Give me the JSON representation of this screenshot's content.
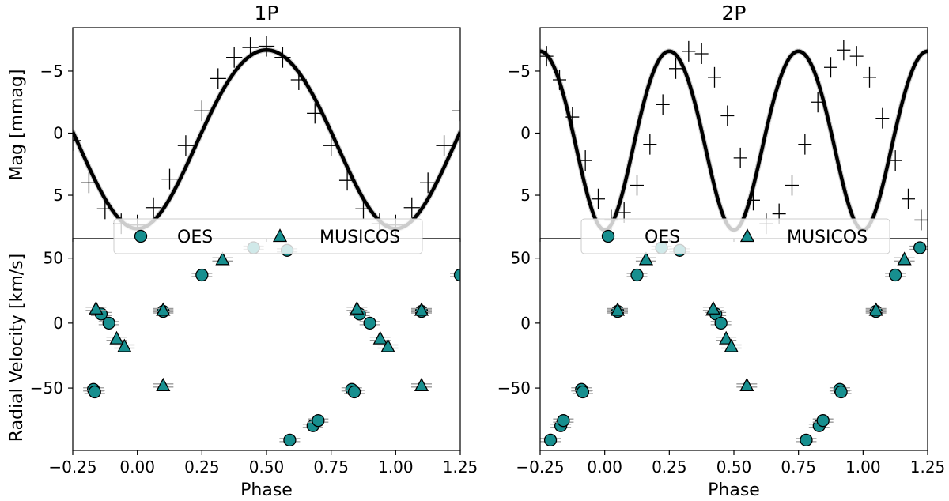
{
  "chart_data": [
    {
      "type": "scatter",
      "panel": "light curve",
      "title": "1P",
      "xlabel": "",
      "ylabel": "Mag [mmag]",
      "xlim": [
        -0.25,
        1.25
      ],
      "ylim": [
        8.5,
        -8.5
      ],
      "yticks": [
        -5,
        0,
        5
      ],
      "ytick_labels": [
        "−5",
        "0",
        "5"
      ],
      "model": {
        "mean": 0.2,
        "amplitude": 7.2,
        "harmonic_amplitude": 0.3,
        "max_phase": 0.5,
        "cycles_per_phase": 1
      },
      "binned_phase": [
        -0.25,
        -0.1875,
        -0.125,
        -0.0625,
        0.0,
        0.0625,
        0.125,
        0.1875,
        0.25,
        0.3125,
        0.375,
        0.4375,
        0.5,
        0.5625,
        0.625,
        0.6875,
        0.75,
        0.8125,
        0.875,
        0.9375,
        1.0,
        1.0625,
        1.125,
        1.1875,
        1.25
      ],
      "binned_mag": [
        0.6,
        4.0,
        6.1,
        7.3,
        7.4,
        6.0,
        3.7,
        1.0,
        -1.8,
        -4.4,
        -6.1,
        -6.9,
        -7.0,
        -6.1,
        -4.3,
        -1.6,
        1.0,
        3.8,
        6.1,
        7.3,
        7.4,
        6.0,
        4.0,
        1.0,
        -1.8
      ]
    },
    {
      "type": "scatter",
      "panel": "radial velocity",
      "title": "",
      "xlabel": "Phase",
      "ylabel": "Radial Velocity [km/s]",
      "xlim": [
        -0.25,
        1.25
      ],
      "ylim": [
        -98,
        65
      ],
      "xticks": [
        -0.25,
        0.0,
        0.25,
        0.5,
        0.75,
        1.0,
        1.25
      ],
      "xtick_labels": [
        "−0.25",
        "0.00",
        "0.25",
        "0.50",
        "0.75",
        "1.00",
        "1.25"
      ],
      "yticks": [
        -50,
        0,
        50
      ],
      "ytick_labels": [
        "−50",
        "0",
        "50"
      ],
      "series": [
        {
          "name": "OES",
          "marker": "circle",
          "color": "#178f8f",
          "x": [
            -0.17,
            -0.165,
            -0.14,
            -0.11,
            0.1,
            0.25,
            0.45,
            0.58,
            0.59,
            0.68,
            0.7,
            0.83,
            0.84,
            0.86,
            0.9,
            1.1,
            1.25
          ],
          "y": [
            -51,
            -53,
            7,
            0,
            9,
            37,
            58,
            56,
            -90,
            -79,
            -75,
            -51,
            -53,
            7,
            0,
            9,
            37
          ]
        },
        {
          "name": "MUSICOS",
          "marker": "triangle",
          "color": "#178f8f",
          "x": [
            -0.16,
            -0.08,
            -0.05,
            0.1,
            0.1,
            0.33,
            0.85,
            0.94,
            0.97,
            1.1,
            1.1
          ],
          "y": [
            11,
            -12,
            -18,
            10,
            -48,
            49,
            11,
            -12,
            -18,
            10,
            -48
          ]
        }
      ],
      "legend": {
        "entries": [
          "OES",
          "MUSICOS"
        ],
        "placement": "top-center"
      }
    },
    {
      "type": "scatter",
      "panel": "light curve",
      "title": "2P",
      "xlabel": "",
      "ylabel": "",
      "xlim": [
        -0.25,
        1.25
      ],
      "ylim": [
        8.5,
        -8.5
      ],
      "yticks": [
        -5,
        0,
        5
      ],
      "ytick_labels": [
        "−5",
        "0",
        "5"
      ],
      "model": {
        "mean": 0.2,
        "amplitude": 7.2,
        "harmonic_amplitude": 0.4,
        "max_phase": 0.25,
        "cycles_per_phase": 2
      },
      "binned_phase": [
        -0.225,
        -0.175,
        -0.125,
        -0.075,
        -0.025,
        0.025,
        0.075,
        0.125,
        0.175,
        0.225,
        0.275,
        0.325,
        0.375,
        0.425,
        0.475,
        0.525,
        0.575,
        0.625,
        0.675,
        0.725,
        0.775,
        0.825,
        0.875,
        0.925,
        0.975,
        1.025,
        1.075,
        1.125,
        1.175,
        1.225
      ],
      "binned_mag": [
        -6.2,
        -4.3,
        -1.3,
        2.2,
        5.3,
        7.0,
        6.4,
        4.2,
        0.9,
        -2.3,
        -5.2,
        -6.6,
        -6.4,
        -4.5,
        -1.4,
        2.0,
        5.4,
        7.3,
        6.5,
        4.2,
        0.9,
        -2.5,
        -5.3,
        -6.7,
        -6.2,
        -4.5,
        -1.2,
        2.2,
        5.3,
        7.0
      ]
    },
    {
      "type": "scatter",
      "panel": "radial velocity",
      "title": "",
      "xlabel": "Phase",
      "ylabel": "",
      "xlim": [
        -0.25,
        1.25
      ],
      "ylim": [
        -98,
        65
      ],
      "xticks": [
        -0.25,
        0.0,
        0.25,
        0.5,
        0.75,
        1.0,
        1.25
      ],
      "xtick_labels": [
        "−0.25",
        "0.00",
        "0.25",
        "0.50",
        "0.75",
        "1.00",
        "1.25"
      ],
      "yticks": [
        -50,
        0,
        50
      ],
      "ytick_labels": [
        "−50",
        "0",
        "50"
      ],
      "series": [
        {
          "name": "OES",
          "marker": "circle",
          "color": "#178f8f",
          "x": [
            -0.21,
            -0.17,
            -0.16,
            -0.09,
            -0.085,
            0.05,
            0.125,
            0.22,
            0.29,
            0.43,
            0.45,
            0.78,
            0.83,
            0.845,
            0.91,
            0.915,
            1.05,
            1.125,
            1.22
          ],
          "y": [
            -90,
            -79,
            -75,
            -51,
            -53,
            9,
            37,
            58,
            56,
            7,
            0,
            -90,
            -79,
            -75,
            -51,
            -53,
            9,
            37,
            58
          ]
        },
        {
          "name": "MUSICOS",
          "marker": "triangle",
          "color": "#178f8f",
          "x": [
            0.05,
            0.16,
            0.42,
            0.47,
            0.49,
            0.55,
            1.05,
            1.16
          ],
          "y": [
            10,
            49,
            11,
            -12,
            -18,
            -48,
            10,
            49
          ]
        }
      ],
      "legend": {
        "entries": [
          "OES",
          "MUSICOS"
        ],
        "placement": "top-center"
      }
    }
  ]
}
